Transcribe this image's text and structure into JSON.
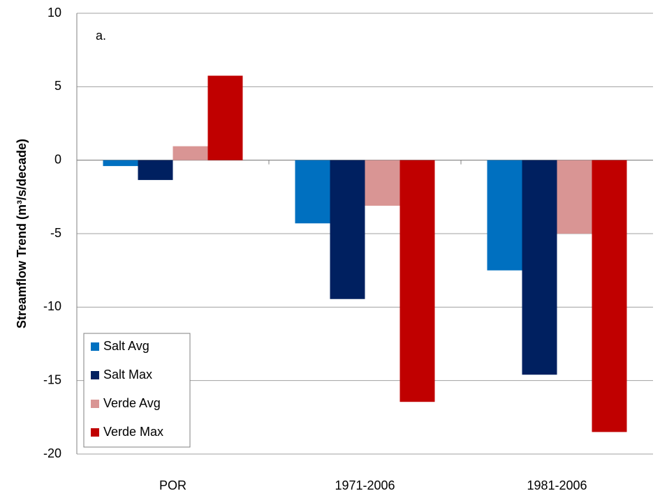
{
  "chart_data": {
    "type": "bar",
    "y_label": "Streamflow Trend (m³/s/decade)",
    "annotation": "a.",
    "categories": [
      "POR",
      "1971-2006",
      "1981-2006"
    ],
    "series": [
      {
        "name": "Salt Avg",
        "color": "#0070c0",
        "values": [
          -0.4,
          -4.3,
          -7.5
        ]
      },
      {
        "name": "Salt Max",
        "color": "#002060",
        "values": [
          -1.35,
          -9.45,
          -14.6
        ]
      },
      {
        "name": "Verde Avg",
        "color": "#d99594",
        "values": [
          0.95,
          -3.1,
          -5.0
        ]
      },
      {
        "name": "Verde Max",
        "color": "#c00000",
        "values": [
          5.75,
          -16.45,
          -18.5
        ]
      }
    ],
    "ylim": [
      -20,
      10
    ],
    "yticks": [
      -20,
      -15,
      -10,
      -5,
      0,
      5,
      10
    ],
    "grid": true,
    "legend": "lower left"
  }
}
